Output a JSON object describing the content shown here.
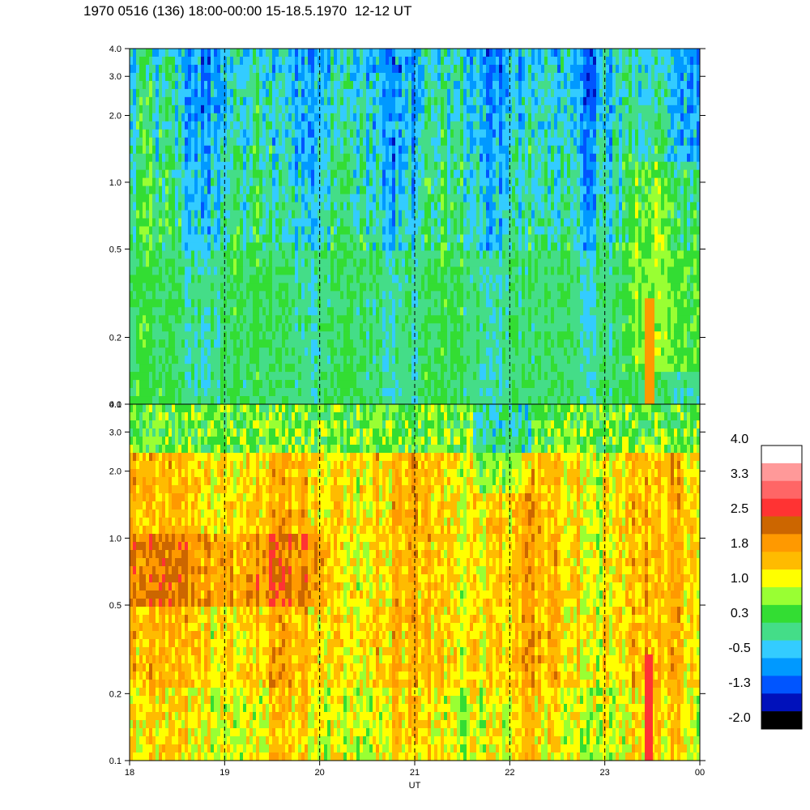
{
  "title": "1970 0516 (136) 18:00-00:00 15-18.5.1970  12-12 UT",
  "chart_data": {
    "type": "heatmap",
    "xlabel": "UT",
    "x_ticks": [
      "18",
      "19",
      "20",
      "21",
      "22",
      "23",
      "00"
    ],
    "x_range": [
      18,
      24
    ],
    "y_scale": "log",
    "y_range": [
      0.1,
      4.0
    ],
    "y_ticks": [
      "0.1",
      "0.2",
      "0.5",
      "1.0",
      "2.0",
      "3.0",
      "4.0"
    ],
    "panels": [
      {
        "name": "upper",
        "dominant_colors": [
          "green",
          "cyan",
          "yellow-green",
          "blue"
        ],
        "base_level": 0.0
      },
      {
        "name": "lower",
        "dominant_colors": [
          "orange",
          "yellow",
          "dark orange"
        ],
        "base_level": 1.8
      }
    ],
    "colorbar": {
      "labels": [
        "4.0",
        "3.3",
        "2.5",
        "1.8",
        "1.0",
        "0.3",
        "-0.5",
        "-1.3",
        "-2.0"
      ],
      "colors": [
        "#ffffff",
        "#ff9999",
        "#ff6666",
        "#ff3333",
        "#cc6600",
        "#ff9900",
        "#ffbb00",
        "#ffff00",
        "#99ff33",
        "#33dd33",
        "#44dd88",
        "#33ccff",
        "#0099ff",
        "#0055ff",
        "#0011bb",
        "#000000"
      ]
    },
    "gridlines": "dashed vertical at each hour"
  }
}
